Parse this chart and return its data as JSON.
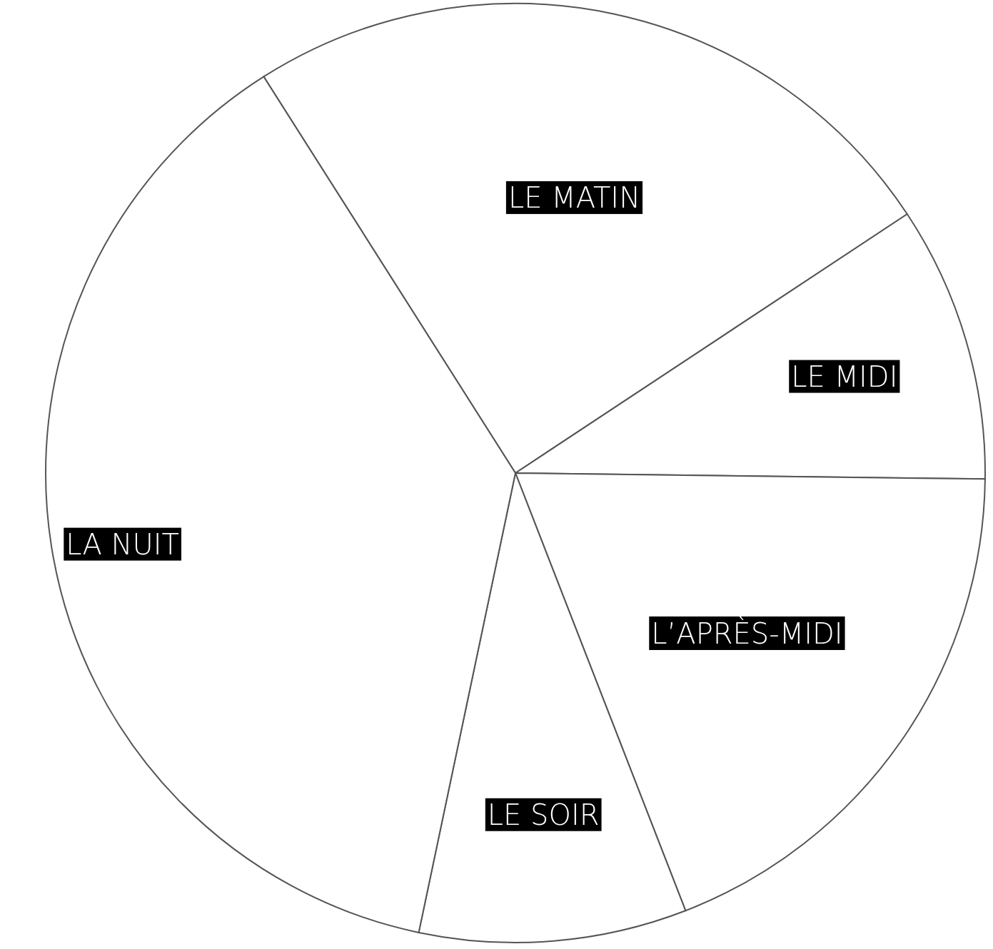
{
  "chart_data": {
    "type": "pie",
    "categories": [
      "LE MATIN",
      "LE MIDI",
      "L’APRÈS-MIDI",
      "LE SOIR",
      "LA NUIT"
    ],
    "values": [
      24.7,
      9.5,
      18.9,
      9.2,
      37.7
    ],
    "colors": [
      "#ffffff",
      "#ffffff",
      "#ffffff",
      "#ffffff",
      "#ffffff"
    ]
  }
}
